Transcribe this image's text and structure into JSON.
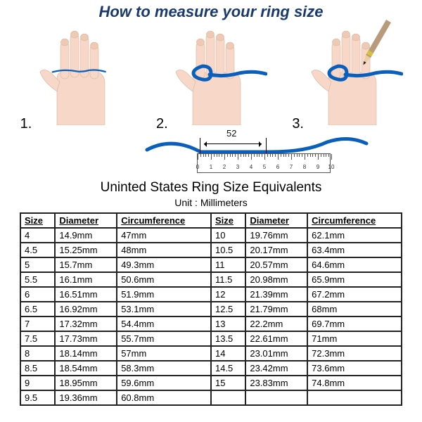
{
  "title": "How to measure your ring size",
  "steps": {
    "s1": "1.",
    "s2": "2.",
    "s3": "3."
  },
  "ribbon_color": "#0a5fbd",
  "skin_color": "#f7d8c8",
  "skin_shadow": "#e9bfa9",
  "pencil": {
    "wood": "#b89b7a",
    "band": "#d6c23a",
    "tip": "#222"
  },
  "ruler": {
    "curve_value": "52",
    "ticks": [
      "0",
      "1",
      "2",
      "3",
      "4",
      "5",
      "6",
      "7",
      "8",
      "9",
      "10"
    ]
  },
  "subtitle": "Uninted States Ring Size Equivalents",
  "unitline": "Unit : Millimeters",
  "table": {
    "headers": [
      "Size",
      "Diameter",
      "Circumference",
      "Size",
      "Diameter",
      "Circumference"
    ],
    "rows": [
      [
        "4",
        "14.9mm",
        "47mm",
        "10",
        "19.76mm",
        "62.1mm"
      ],
      [
        "4.5",
        "15.25mm",
        "48mm",
        "10.5",
        "20.17mm",
        "63.4mm"
      ],
      [
        "5",
        "15.7mm",
        "49.3mm",
        "11",
        "20.57mm",
        "64.6mm"
      ],
      [
        "5.5",
        "16.1mm",
        "50.6mm",
        "11.5",
        "20.98mm",
        "65.9mm"
      ],
      [
        "6",
        "16.51mm",
        "51.9mm",
        "12",
        "21.39mm",
        "67.2mm"
      ],
      [
        "6.5",
        "16.92mm",
        "53.1mm",
        "12.5",
        "21.79mm",
        "68mm"
      ],
      [
        "7",
        "17.32mm",
        "54.4mm",
        "13",
        "22.2mm",
        "69.7mm"
      ],
      [
        "7.5",
        "17.73mm",
        "55.7mm",
        "13.5",
        "22.61mm",
        "71mm"
      ],
      [
        "8",
        "18.14mm",
        "57mm",
        "14",
        "23.01mm",
        "72.3mm"
      ],
      [
        "8.5",
        "18.54mm",
        "58.3mm",
        "14.5",
        "23.42mm",
        "73.6mm"
      ],
      [
        "9",
        "18.95mm",
        "59.6mm",
        "15",
        "23.83mm",
        "74.8mm"
      ],
      [
        "9.5",
        "19.36mm",
        "60.8mm",
        "",
        "",
        ""
      ]
    ]
  }
}
